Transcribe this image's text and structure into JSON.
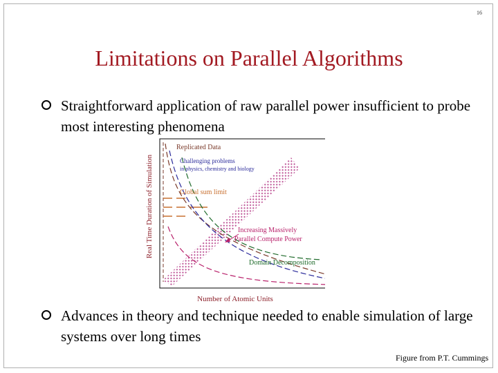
{
  "slide": {
    "page_number": "16",
    "title": "Limitations on Parallel Algorithms",
    "bullets": [
      "Straightforward application of raw parallel power insufficient to probe most interesting phenomena",
      "Advances in theory and technique needed to enable simulation of large systems over long times"
    ],
    "credit": "Figure from P.T. Cummings"
  },
  "figure": {
    "ylabel": "Real Time Duration of Simulation",
    "xlabel": "Number of Atomic Units",
    "annotations": {
      "replicated": "Replicated Data",
      "challenging_1": "Challenging problems",
      "challenging_2": "in physics, chemistry and biology",
      "global_sum": "Global sum limit",
      "increasing_1": "Increasing Massively",
      "increasing_2": "Parallel Compute Power",
      "domain": "Domain Decomposition"
    },
    "colors": {
      "axis_label": "#8b1e28",
      "replicated_curve": "#7a3a2a",
      "global_sum": "#c87030",
      "challenging": "#2a2a9a",
      "increasing": "#b8206a",
      "domain": "#1e6a2a",
      "band": "#c05a9a"
    }
  }
}
